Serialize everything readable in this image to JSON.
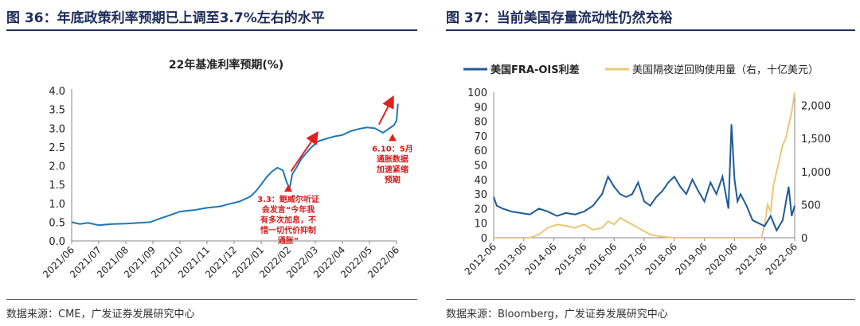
{
  "left": {
    "figure_title": "图 36：年底政策利率预期已上调至3.7%左右的水平",
    "source": "数据来源：CME，广发证券发展研究中心"
  },
  "right": {
    "figure_title": "图 37：当前美国存量流动性仍然充裕",
    "source": "数据来源：Bloomberg，广发证券发展研究中心"
  },
  "chart_data": [
    {
      "type": "line",
      "title": "22年基准利率预期(%)",
      "xlabel": "",
      "ylabel": "",
      "ylim": [
        0,
        4
      ],
      "yticks": [
        "0.0",
        "0.5",
        "1.0",
        "1.5",
        "2.0",
        "2.5",
        "3.0",
        "3.5",
        "4.0"
      ],
      "xticks": [
        "2021/06",
        "2021/07",
        "2021/08",
        "2021/09",
        "2021/10",
        "2021/11",
        "2021/12",
        "2022/01",
        "2022/02",
        "2022/03",
        "2022/04",
        "2022/05",
        "2022/06"
      ],
      "grid": false,
      "color": "#1f77b4",
      "series": [
        {
          "x": [
            0,
            0.3,
            0.6,
            1.0,
            1.5,
            2.0,
            2.5,
            2.9,
            3.2,
            3.6,
            4.0,
            4.5,
            5.0,
            5.5,
            5.8,
            6.2,
            6.6,
            6.8,
            7.0,
            7.2,
            7.4,
            7.6,
            7.8,
            7.95,
            8.05,
            8.15,
            8.3,
            8.5,
            8.8,
            9.1,
            9.4,
            9.7,
            10.0,
            10.3,
            10.6,
            10.9,
            11.2,
            11.5,
            11.7,
            11.9,
            12.0,
            12.05
          ],
          "y": [
            0.5,
            0.45,
            0.48,
            0.42,
            0.45,
            0.46,
            0.48,
            0.5,
            0.58,
            0.68,
            0.78,
            0.82,
            0.88,
            0.92,
            0.98,
            1.05,
            1.18,
            1.32,
            1.5,
            1.7,
            1.85,
            1.95,
            1.88,
            1.55,
            1.4,
            1.78,
            1.95,
            2.2,
            2.45,
            2.65,
            2.72,
            2.78,
            2.82,
            2.92,
            2.98,
            3.02,
            3.0,
            2.88,
            2.98,
            3.08,
            3.2,
            3.65
          ]
        }
      ],
      "annotations": [
        {
          "x": 8.0,
          "y": 1.5,
          "text": [
            "3.3：鲍威尔听证",
            "会发言“今年我",
            "有多次加息，不",
            "惜一切代价抑制",
            "通胀”"
          ]
        },
        {
          "x": 11.85,
          "y": 2.85,
          "text": [
            "6.10：5月",
            "通胀数据",
            "加速紧缩",
            "预期"
          ]
        }
      ]
    },
    {
      "type": "line",
      "title": "",
      "xlabel": "",
      "ylabel": "",
      "ylim": [
        0,
        100
      ],
      "y2lim": [
        0,
        2200
      ],
      "yticks": [
        "0",
        "10",
        "20",
        "30",
        "40",
        "50",
        "60",
        "70",
        "80",
        "90",
        "100"
      ],
      "y2ticks": [
        "0",
        "500",
        "1,000",
        "1,500",
        "2,000"
      ],
      "xticks": [
        "2012-06",
        "2013-06",
        "2014-06",
        "2015-06",
        "2016-06",
        "2017-06",
        "2018-06",
        "2019-06",
        "2020-06",
        "2021-06",
        "2022-06"
      ],
      "legend": "top",
      "grid": false,
      "series": [
        {
          "name": "美国FRA-OIS利差",
          "axis": "left",
          "color": "#1f5a96",
          "x": [
            0,
            0.1,
            0.3,
            0.6,
            0.9,
            1.2,
            1.5,
            1.8,
            2.1,
            2.4,
            2.7,
            3.0,
            3.3,
            3.6,
            3.8,
            4.0,
            4.2,
            4.4,
            4.6,
            4.8,
            5.0,
            5.2,
            5.4,
            5.6,
            5.8,
            6.0,
            6.2,
            6.4,
            6.6,
            6.8,
            7.0,
            7.2,
            7.4,
            7.6,
            7.8,
            7.9,
            8.0,
            8.1,
            8.2,
            8.4,
            8.6,
            8.8,
            9.0,
            9.2,
            9.4,
            9.6,
            9.8,
            9.9,
            10.0
          ],
          "y": [
            28,
            22,
            20,
            18,
            17,
            16,
            20,
            18,
            15,
            17,
            16,
            18,
            22,
            30,
            42,
            35,
            30,
            28,
            30,
            38,
            25,
            22,
            28,
            32,
            38,
            42,
            35,
            30,
            40,
            32,
            25,
            38,
            30,
            42,
            20,
            78,
            40,
            25,
            30,
            22,
            12,
            10,
            8,
            15,
            5,
            12,
            35,
            15,
            22
          ]
        },
        {
          "name": "美国隔夜逆回购使用量（右，十亿美元）",
          "axis": "right",
          "color": "#e8c874",
          "x": [
            0,
            1.2,
            1.5,
            1.8,
            2.1,
            2.4,
            2.7,
            3.0,
            3.3,
            3.6,
            3.8,
            4.0,
            4.2,
            4.4,
            4.6,
            4.8,
            5.0,
            5.2,
            5.5,
            6.0,
            6.5,
            7.0,
            7.5,
            7.8,
            8.0,
            8.5,
            8.9,
            9.0,
            9.1,
            9.2,
            9.3,
            9.4,
            9.5,
            9.6,
            9.7,
            9.8,
            9.9,
            10.0
          ],
          "y": [
            0,
            0,
            50,
            150,
            200,
            180,
            150,
            200,
            120,
            150,
            250,
            200,
            300,
            250,
            200,
            150,
            100,
            50,
            20,
            0,
            0,
            0,
            0,
            0,
            0,
            0,
            0,
            200,
            500,
            400,
            800,
            1000,
            1200,
            1400,
            1500,
            1700,
            1900,
            2200
          ]
        }
      ]
    }
  ]
}
